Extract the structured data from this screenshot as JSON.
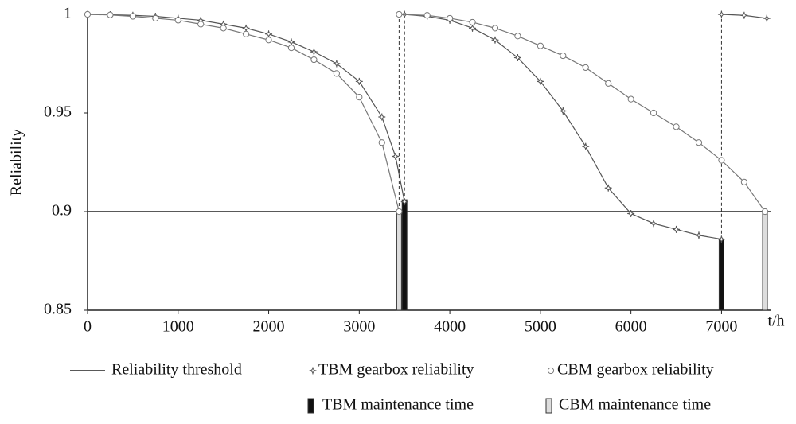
{
  "chart_data": {
    "type": "line",
    "y_label": "Reliability",
    "x_label": "t/h",
    "xlim": [
      0,
      7550
    ],
    "ylim": [
      0.85,
      1
    ],
    "xticks": [
      0,
      1000,
      2000,
      3000,
      4000,
      5000,
      6000,
      7000
    ],
    "yticks": [
      0.85,
      0.9,
      0.95,
      1
    ],
    "threshold": {
      "name": "Reliability threshold",
      "value": 0.9,
      "color": "#222222"
    },
    "series": [
      {
        "name": "TBM gearbox reliability",
        "marker": "star",
        "color": "#555555",
        "x": [
          0,
          250,
          500,
          750,
          1000,
          1250,
          1500,
          1750,
          2000,
          2250,
          2500,
          2750,
          3000,
          3250,
          3400,
          3500,
          null,
          3500,
          3750,
          4000,
          4250,
          4500,
          4750,
          5000,
          5250,
          5500,
          5750,
          6000,
          6250,
          6500,
          6750,
          7000,
          null,
          7000,
          7250,
          7500
        ],
        "values": [
          1,
          0.9998,
          0.9995,
          0.999,
          0.998,
          0.997,
          0.995,
          0.993,
          0.99,
          0.986,
          0.981,
          0.975,
          0.966,
          0.948,
          0.928,
          0.905,
          null,
          1,
          0.999,
          0.997,
          0.993,
          0.987,
          0.978,
          0.966,
          0.951,
          0.933,
          0.912,
          0.899,
          0.894,
          0.891,
          0.888,
          0.886,
          null,
          1,
          0.9995,
          0.998
        ]
      },
      {
        "name": "CBM gearbox reliability",
        "marker": "circle",
        "color": "#777777",
        "x": [
          0,
          250,
          500,
          750,
          1000,
          1250,
          1500,
          1750,
          2000,
          2250,
          2500,
          2750,
          3000,
          3250,
          3440,
          null,
          3440,
          3750,
          4000,
          4250,
          4500,
          4750,
          5000,
          5250,
          5500,
          5750,
          6000,
          6250,
          6500,
          6750,
          7000,
          7250,
          7480
        ],
        "values": [
          1,
          0.9997,
          0.999,
          0.998,
          0.997,
          0.995,
          0.993,
          0.99,
          0.987,
          0.983,
          0.977,
          0.97,
          0.958,
          0.935,
          0.9,
          null,
          1,
          0.9995,
          0.998,
          0.996,
          0.993,
          0.989,
          0.984,
          0.979,
          0.973,
          0.965,
          0.957,
          0.95,
          0.943,
          0.935,
          0.926,
          0.915,
          0.9
        ]
      }
    ],
    "bars": [
      {
        "name": "TBM maintenance time",
        "color": "#111111",
        "x": [
          3500,
          7000
        ],
        "values": [
          0.906,
          0.886
        ]
      },
      {
        "name": "CBM maintenance time",
        "color": "#dddddd",
        "x": [
          3440,
          7480
        ],
        "values": [
          0.9,
          0.9
        ]
      }
    ]
  }
}
